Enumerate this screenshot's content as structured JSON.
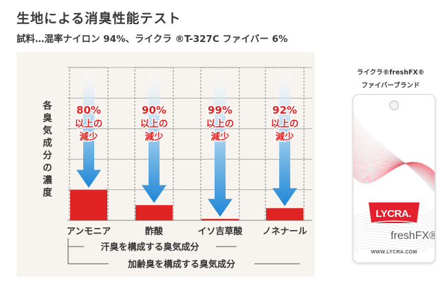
{
  "header": {
    "title": "生地による消臭性能テスト",
    "subtitle": "試料…混率ナイロン 94%、ライクラ ®T-327C ファイバー 6%"
  },
  "chart_data": {
    "type": "bar",
    "ylabel": "各臭気成分の濃度",
    "categories": [
      "アンモニア",
      "酢酸",
      "イソ吉草酸",
      "ノネナール"
    ],
    "values": [
      20,
      10,
      1,
      8
    ],
    "reduction_labels": [
      {
        "pct": "80%",
        "line2": "以上の",
        "line3": "減少"
      },
      {
        "pct": "90%",
        "line2": "以上の",
        "line3": "減少"
      },
      {
        "pct": "99%",
        "line2": "以上の",
        "line3": "減少"
      },
      {
        "pct": "92%",
        "line2": "以上の",
        "line3": "減少"
      }
    ],
    "groups": [
      {
        "label": "汗臭を構成する臭気成分"
      },
      {
        "label": "加齢臭を構成する臭気成分"
      }
    ],
    "ylim": [
      0,
      100
    ],
    "grid": true,
    "bar_color": "#e02424"
  },
  "product": {
    "name_line1": "ライクラ®freshFX®",
    "name_line2": "ファイバーブランド",
    "logo_text": "LYCRA.",
    "brand_text": "freshFX®",
    "url": "WWW.LYCRA.COM"
  }
}
